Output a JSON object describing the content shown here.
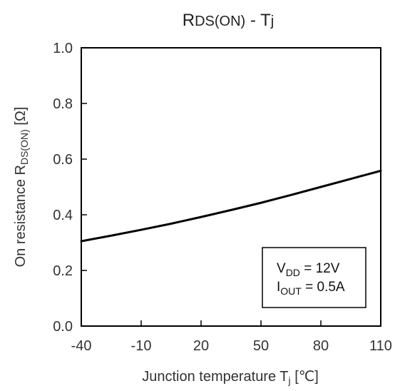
{
  "chart_data": {
    "type": "line",
    "title": {
      "main": "R",
      "main_sub": "DS(ON)",
      "sep": " - T",
      "sep_sub": "j"
    },
    "ylabel": {
      "prefix": "On resistance   R",
      "sub": "DS(ON)",
      "suffix": "  [Ω]"
    },
    "xlabel": {
      "prefix": "Junction temperature    T",
      "sub": "j",
      "suffix": "  [℃]"
    },
    "xlim": [
      -40,
      110
    ],
    "ylim": [
      0,
      1.0
    ],
    "x_ticks": [
      "-40",
      "-10",
      "20",
      "50",
      "80",
      "110"
    ],
    "y_ticks": [
      "0.0",
      "0.2",
      "0.4",
      "0.6",
      "0.8",
      "1.0"
    ],
    "grid": false,
    "series": [
      {
        "x": [
          -40,
          -25,
          -10,
          5,
          20,
          35,
          50,
          65,
          80,
          95,
          110
        ],
        "y": [
          0.305,
          0.325,
          0.346,
          0.368,
          0.392,
          0.417,
          0.443,
          0.471,
          0.5,
          0.529,
          0.558
        ],
        "color": "#000000"
      }
    ],
    "annotation": {
      "line1_prefix": "V",
      "line1_sub": "DD",
      "line1_suffix": " = 12V",
      "line2_prefix": "I",
      "line2_sub": "OUT",
      "line2_suffix": " = 0.5A"
    }
  }
}
